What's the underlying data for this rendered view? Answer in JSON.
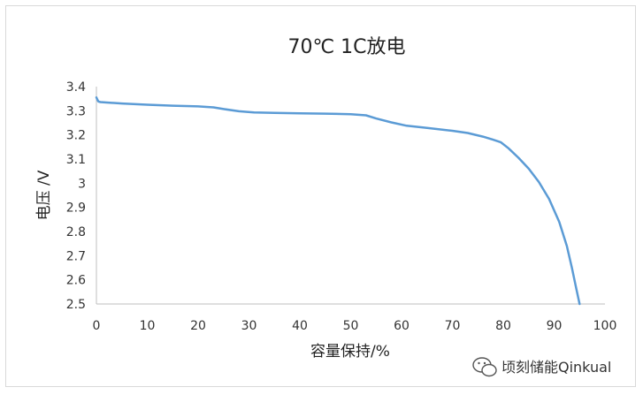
{
  "chart_data": {
    "type": "line",
    "title": "70℃ 1C放电",
    "xlabel": "容量保持/%",
    "ylabel": "电压 /V",
    "xlim": [
      0,
      100
    ],
    "ylim": [
      2.5,
      3.4
    ],
    "xticks": [
      "0",
      "10",
      "20",
      "30",
      "40",
      "50",
      "60",
      "70",
      "80",
      "90",
      "100"
    ],
    "yticks": [
      "3.4",
      "3.3",
      "3.2",
      "3.1",
      "3",
      "2.9",
      "2.8",
      "2.7",
      "2.6",
      "2.5"
    ],
    "grid": false,
    "legend": "none",
    "series": [
      {
        "color": "#5b9bd5",
        "x": [
          0,
          0.2,
          0.4,
          0.8,
          2,
          5,
          10,
          15,
          20,
          23,
          25,
          28,
          31,
          35,
          40,
          45,
          50,
          53,
          55,
          58,
          61,
          65,
          70,
          73,
          76,
          78,
          79.5,
          81,
          83,
          85,
          87,
          89,
          91,
          92.5,
          93.5,
          94.3,
          95
        ],
        "y": [
          3.355,
          3.345,
          3.338,
          3.336,
          3.334,
          3.33,
          3.325,
          3.321,
          3.318,
          3.314,
          3.307,
          3.298,
          3.293,
          3.291,
          3.289,
          3.288,
          3.286,
          3.281,
          3.268,
          3.252,
          3.238,
          3.229,
          3.217,
          3.208,
          3.193,
          3.18,
          3.17,
          3.145,
          3.105,
          3.06,
          3.005,
          2.935,
          2.84,
          2.74,
          2.65,
          2.57,
          2.5
        ]
      }
    ]
  },
  "watermark": {
    "icon": "wechat-icon",
    "text": "顷刻储能Qinkual"
  }
}
